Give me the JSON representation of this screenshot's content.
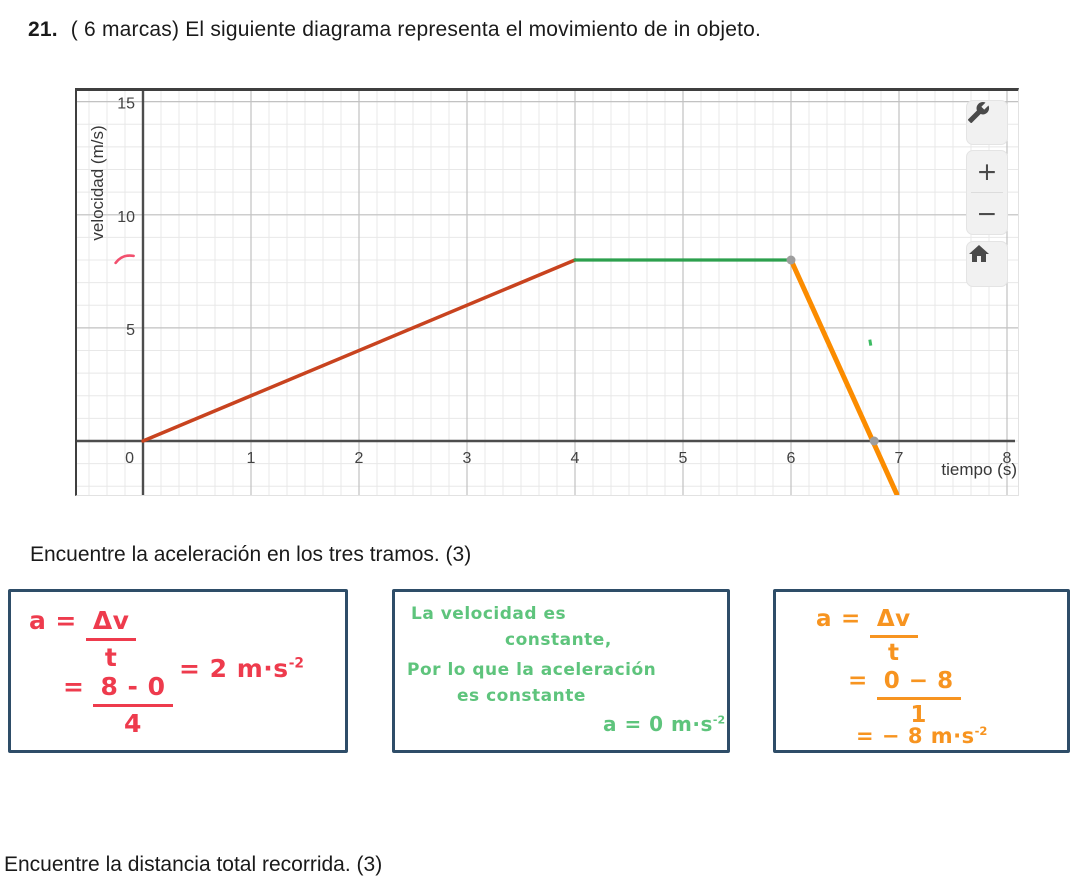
{
  "header": {
    "number": "21.",
    "text": "( 6 marcas)  El siguiente diagrama representa el movimiento de in objeto."
  },
  "prompts": {
    "acceleration": "Encuentre la aceleración en los tres tramos. (3)",
    "distance": "Encuentre la distancia total recorrida. (3)"
  },
  "toolbar": {
    "zoom_in_label": "+",
    "zoom_out_label": "−"
  },
  "chart_data": {
    "type": "line",
    "title": "",
    "xlabel": "tiempo (s)",
    "ylabel": "velocidad (m/s)",
    "xlim": [
      -0.61,
      8.1
    ],
    "ylim": [
      -2.39,
      15.47
    ],
    "x_ticks": [
      0,
      1,
      2,
      3,
      4,
      5,
      6,
      7,
      8
    ],
    "y_ticks": [
      5,
      10,
      15
    ],
    "grid": true,
    "series": [
      {
        "name": "tramo-1-aceleracion",
        "color": "#c8431f",
        "width": 3.5,
        "points": [
          [
            0,
            0
          ],
          [
            4,
            8
          ]
        ]
      },
      {
        "name": "tramo-2-velocidad-constante",
        "color": "#2da04e",
        "width": 3.2,
        "points": [
          [
            4,
            8
          ],
          [
            6,
            8
          ]
        ]
      },
      {
        "name": "tramo-3-desaceleracion",
        "color": "#fb8c00",
        "width": 5,
        "points": [
          [
            6,
            8
          ],
          [
            6.98,
            -2.35
          ]
        ]
      }
    ],
    "markers": [
      {
        "x": 6,
        "y": 8,
        "color": "#9e9e9e"
      },
      {
        "x": 6.77,
        "y": 0,
        "color": "#9e9e9e"
      }
    ],
    "annotations": [
      {
        "type": "pink-stroke",
        "at": [
          -0.17,
          8.05
        ],
        "color": "#f2506e"
      },
      {
        "type": "green-dash",
        "at": [
          6.73,
          4.35
        ],
        "color": "#3dbb63"
      }
    ],
    "axis_color": "#4d4d4d",
    "major_grid_color": "#c2c2c2",
    "minor_grid_color": "#e8e8e8",
    "tick_label_color": "#424242",
    "axis_label_color": "#383838"
  },
  "answers": {
    "box1": {
      "lhs": "a",
      "eq": "=",
      "frac1_num": "Δv",
      "frac1_den": "t",
      "eq2": "=",
      "frac2_num": "8 - 0",
      "frac2_den": "4",
      "result": "= 2 m·s",
      "result_sup": "-2"
    },
    "box2": {
      "lines": [
        "La velocidad es",
        "constante,",
        "Por lo que la aceleración",
        "es constante"
      ],
      "result": "a = 0 m·s",
      "result_sup": "-2"
    },
    "box3": {
      "lhs": "a",
      "eq": "=",
      "frac1_num": "Δv",
      "frac1_den": "t",
      "eq2": "=",
      "frac2_num": "0 − 8",
      "frac2_den": "1",
      "result": "= − 8 m·s",
      "result_sup": "-2"
    }
  }
}
